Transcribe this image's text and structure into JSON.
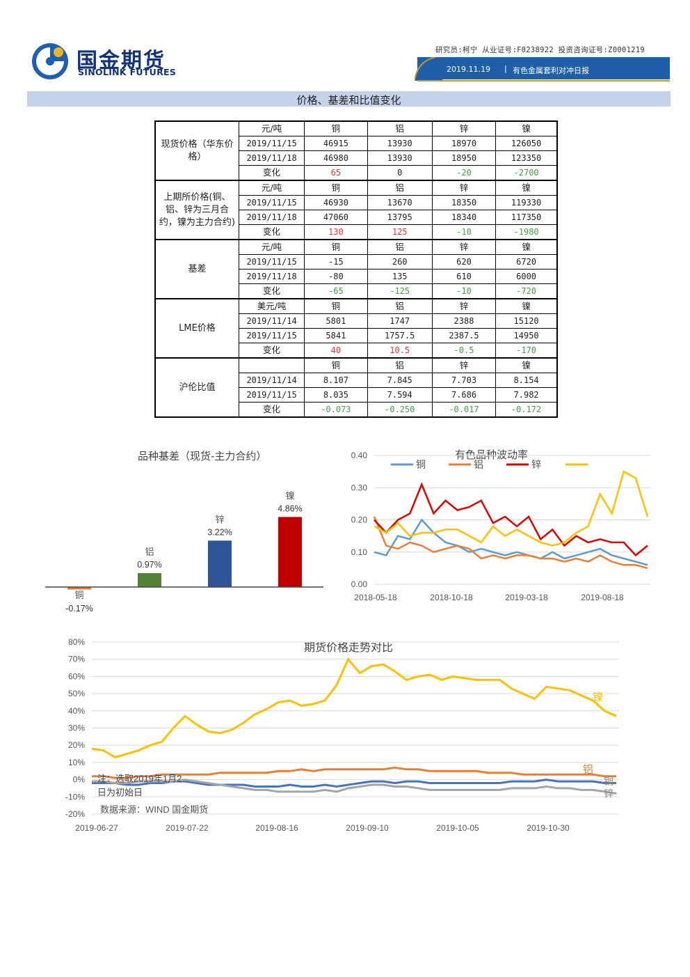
{
  "header": {
    "brand_cn": "国金期货",
    "brand_en": "SINOLINK FUTURES",
    "researcher": "研究员:柯宁  从业证号:F0238922  投资咨询证号:Z0001219",
    "date": "2019.11.19",
    "sep": "|",
    "report": "有色金属套利对冲日报",
    "colors": {
      "brand": "#12337a",
      "bar": "#1f5fa7",
      "accent": "#c79a2a",
      "section": "#c4d3ea"
    }
  },
  "section_title": "价格、基差和比值变化",
  "table": {
    "change_label": "变化",
    "metals": [
      "铜",
      "铝",
      "锌",
      "镍"
    ],
    "groups": [
      {
        "name": "现货价格（华东价格）",
        "unit": "元/吨",
        "rows": [
          {
            "date": "2019/11/15",
            "vals": [
              "46915",
              "13930",
              "18970",
              "126050"
            ]
          },
          {
            "date": "2019/11/18",
            "vals": [
              "46980",
              "13930",
              "18950",
              "123350"
            ]
          }
        ],
        "change": [
          "65",
          "0",
          "-20",
          "-2700"
        ]
      },
      {
        "name": "上期所价格(铜、铝、锌为三月合约，镍为主力合约)",
        "unit": "元/吨",
        "rows": [
          {
            "date": "2019/11/15",
            "vals": [
              "46930",
              "13670",
              "18350",
              "119330"
            ]
          },
          {
            "date": "2019/11/18",
            "vals": [
              "47060",
              "13795",
              "18340",
              "117350"
            ]
          }
        ],
        "change": [
          "130",
          "125",
          "-10",
          "-1980"
        ]
      },
      {
        "name": "基差",
        "unit": "元/吨",
        "rows": [
          {
            "date": "2019/11/15",
            "vals": [
              "-15",
              "260",
              "620",
              "6720"
            ]
          },
          {
            "date": "2019/11/18",
            "vals": [
              "-80",
              "135",
              "610",
              "6000"
            ]
          }
        ],
        "change": [
          "-65",
          "-125",
          "-10",
          "-720"
        ]
      },
      {
        "name": "LME价格",
        "unit": "美元/吨",
        "rows": [
          {
            "date": "2019/11/14",
            "vals": [
              "5801",
              "1747",
              "2388",
              "15120"
            ]
          },
          {
            "date": "2019/11/15",
            "vals": [
              "5841",
              "1757.5",
              "2387.5",
              "14950"
            ]
          }
        ],
        "change": [
          "40",
          "10.5",
          "-0.5",
          "-170"
        ]
      },
      {
        "name": "沪伦比值",
        "unit": "",
        "rows": [
          {
            "date": "2019/11/14",
            "vals": [
              "8.107",
              "7.845",
              "7.703",
              "8.154"
            ]
          },
          {
            "date": "2019/11/15",
            "vals": [
              "8.035",
              "7.594",
              "7.686",
              "7.982"
            ]
          }
        ],
        "change": [
          "-0.073",
          "-0.250",
          "-0.017",
          "-0.172"
        ]
      }
    ]
  },
  "chart_data": [
    {
      "type": "bar",
      "title": "品种基差（现货-主力合约）",
      "categories": [
        "铜",
        "铝",
        "锌",
        "镍"
      ],
      "values": [
        -0.17,
        0.97,
        3.22,
        4.86
      ],
      "value_labels": [
        "-0.17%",
        "0.97%",
        "3.22%",
        "4.86%"
      ],
      "colors": [
        "#e07b39",
        "#548235",
        "#2f5597",
        "#c00000"
      ],
      "unit": "%"
    },
    {
      "type": "line",
      "title": "有色品种波动率",
      "x_ticks": [
        "2018-05-18",
        "2018-10-18",
        "2019-03-18",
        "2019-08-18"
      ],
      "y_ticks": [
        "0.40",
        "0.30",
        "0.20",
        "0.10",
        "0.00"
      ],
      "ylim": [
        0,
        0.4
      ],
      "legend_position": "top",
      "series": [
        {
          "name": "铜",
          "color": "#5b9bd5",
          "values": [
            0.1,
            0.09,
            0.15,
            0.14,
            0.2,
            0.16,
            0.13,
            0.12,
            0.1,
            0.11,
            0.1,
            0.09,
            0.1,
            0.09,
            0.08,
            0.1,
            0.08,
            0.09,
            0.1,
            0.11,
            0.09,
            0.08,
            0.07,
            0.06
          ]
        },
        {
          "name": "铝",
          "color": "#ed7d31",
          "values": [
            0.21,
            0.12,
            0.11,
            0.13,
            0.12,
            0.1,
            0.11,
            0.12,
            0.11,
            0.08,
            0.09,
            0.08,
            0.09,
            0.09,
            0.08,
            0.08,
            0.07,
            0.08,
            0.07,
            0.09,
            0.07,
            0.06,
            0.06,
            0.05
          ]
        },
        {
          "name": "锌",
          "color": "#e00000",
          "values": [
            0.2,
            0.16,
            0.2,
            0.22,
            0.31,
            0.22,
            0.26,
            0.23,
            0.24,
            0.26,
            0.19,
            0.21,
            0.18,
            0.21,
            0.14,
            0.17,
            0.12,
            0.15,
            0.13,
            0.14,
            0.13,
            0.13,
            0.09,
            0.12
          ]
        },
        {
          "name": "",
          "color": "#ffc000",
          "values": [
            0.18,
            0.16,
            0.19,
            0.15,
            0.16,
            0.16,
            0.17,
            0.17,
            0.15,
            0.13,
            0.18,
            0.15,
            0.17,
            0.15,
            0.13,
            0.12,
            0.13,
            0.16,
            0.18,
            0.28,
            0.22,
            0.35,
            0.33,
            0.21
          ]
        }
      ]
    },
    {
      "type": "line",
      "title": "期货价格走势对比",
      "x_ticks": [
        "2019-06-27",
        "2019-07-22",
        "2019-08-16",
        "2019-09-10",
        "2019-10-05",
        "2019-10-30"
      ],
      "y_ticks": [
        "80%",
        "70%",
        "60%",
        "50%",
        "40%",
        "30%",
        "20%",
        "10%",
        "0%",
        "-10%",
        "-20%"
      ],
      "ylim": [
        -20,
        80
      ],
      "series": [
        {
          "name": "镍",
          "color": "#ffc000",
          "values": [
            18,
            17,
            13,
            15,
            17,
            20,
            22,
            30,
            37,
            32,
            28,
            27,
            29,
            33,
            38,
            41,
            45,
            46,
            43,
            44,
            46,
            55,
            70,
            62,
            66,
            67,
            63,
            58,
            60,
            61,
            58,
            60,
            59,
            58,
            58,
            58,
            53,
            50,
            47,
            54,
            53,
            52,
            49,
            46,
            40,
            37
          ]
        },
        {
          "name": "铝",
          "color": "#ed7d31",
          "values": [
            2,
            2,
            1,
            1,
            2,
            2,
            3,
            3,
            3,
            3,
            3,
            4,
            4,
            4,
            4,
            4,
            5,
            5,
            6,
            5,
            6,
            6,
            6,
            6,
            6,
            6,
            7,
            6,
            6,
            5,
            5,
            5,
            5,
            5,
            4,
            4,
            4,
            3,
            3,
            3,
            3,
            3,
            3,
            3,
            2,
            2
          ]
        },
        {
          "name": "铜",
          "color": "#4472c4",
          "values": [
            -2,
            -2,
            -2,
            -3,
            -3,
            -2,
            -2,
            -1,
            -1,
            -2,
            -3,
            -3,
            -3,
            -3,
            -4,
            -4,
            -4,
            -3,
            -4,
            -4,
            -3,
            -4,
            -3,
            -2,
            -1,
            -1,
            -2,
            -1,
            -1,
            -2,
            -2,
            -2,
            -2,
            -2,
            -2,
            -2,
            -1,
            -1,
            -1,
            0,
            -1,
            -1,
            -1,
            -1,
            -2,
            -2
          ]
        },
        {
          "name": "锌",
          "color": "#a5a5a5",
          "values": [
            -1,
            -1,
            -2,
            -2,
            -1,
            -1,
            -1,
            -1,
            0,
            -1,
            -2,
            -3,
            -4,
            -5,
            -6,
            -6,
            -7,
            -7,
            -7,
            -7,
            -6,
            -7,
            -5,
            -4,
            -3,
            -3,
            -4,
            -4,
            -5,
            -6,
            -6,
            -6,
            -6,
            -6,
            -6,
            -6,
            -5,
            -5,
            -5,
            -4,
            -5,
            -5,
            -6,
            -6,
            -7,
            -8
          ]
        }
      ],
      "note": "注：选取2019年1月2日为初始日",
      "source": "数据来源：WIND 国金期货"
    }
  ]
}
